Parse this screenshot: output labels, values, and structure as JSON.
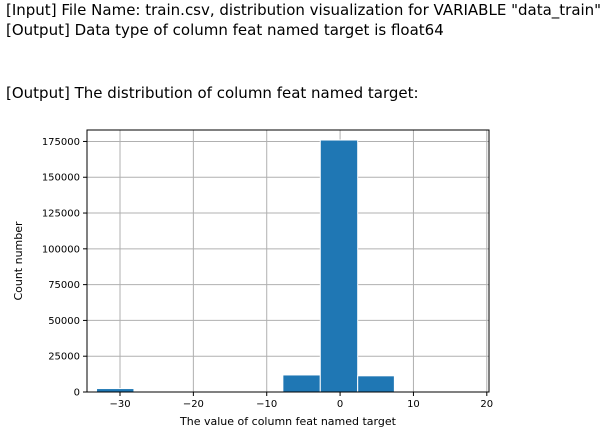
{
  "output_log": {
    "input_line": "[Input] File Name: train.csv, distribution visualization for VARIABLE \"data_train\"",
    "dtype_line": "[Output] Data type of column feat named target is float64",
    "dist_heading": "[Output] The distribution of column feat named target:"
  },
  "colors": {
    "bar": "#1f77b4",
    "grid": "#b0b0b0",
    "axes": "#000000"
  },
  "chart_data": {
    "type": "bar",
    "title": "",
    "xlabel": "The value of column feat named target",
    "ylabel": "Count number",
    "grid": true,
    "xlim": [
      -34.5,
      20.3
    ],
    "ylim": [
      0,
      183000
    ],
    "xticks": [
      -30,
      -20,
      -10,
      0,
      10,
      20
    ],
    "xtick_labels": [
      "−30",
      "−20",
      "−10",
      "0",
      "10",
      "20"
    ],
    "yticks": [
      0,
      25000,
      50000,
      75000,
      100000,
      125000,
      150000,
      175000
    ],
    "ytick_labels": [
      "0",
      "25000",
      "50000",
      "75000",
      "100000",
      "125000",
      "150000",
      "175000"
    ],
    "bins": [
      {
        "x0": -33.2,
        "x1": -28.1,
        "count": 2400
      },
      {
        "x0": -28.1,
        "x1": -23.0,
        "count": 0
      },
      {
        "x0": -23.0,
        "x1": -18.0,
        "count": 0
      },
      {
        "x0": -18.0,
        "x1": -12.9,
        "count": 0
      },
      {
        "x0": -12.9,
        "x1": -7.8,
        "count": 0
      },
      {
        "x0": -7.8,
        "x1": -2.7,
        "count": 11900
      },
      {
        "x0": -2.7,
        "x1": 2.4,
        "count": 176000
      },
      {
        "x0": 2.4,
        "x1": 7.4,
        "count": 11300
      },
      {
        "x0": 7.4,
        "x1": 12.5,
        "count": 0
      },
      {
        "x0": 12.5,
        "x1": 17.6,
        "count": 0
      }
    ]
  }
}
